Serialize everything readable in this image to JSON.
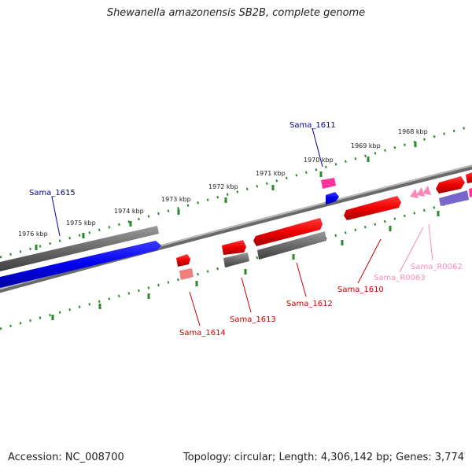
{
  "title": "Shewanella amazonensis SB2B, complete genome",
  "footer": {
    "accession": "Accession: NC_008700",
    "info": "Topology: circular; Length: 4,306,142 bp; Genes: 3,774"
  },
  "ticks": [
    "1976 kbp",
    "1975 kbp",
    "1974 kbp",
    "1973 kbp",
    "1972 kbp",
    "1971 kbp",
    "1970 kbp",
    "1969 kbp",
    "1968 kbp"
  ],
  "genes": {
    "sama_1615": "Sama_1615",
    "sama_1611": "Sama_1611",
    "sama_1614": "Sama_1614",
    "sama_1613": "Sama_1613",
    "sama_1612": "Sama_1612",
    "sama_1610": "Sama_1610",
    "sama_r0063": "Sama_R0063",
    "sama_r0062": "Sama_R0062"
  },
  "colors": {
    "cds": "#ff0000",
    "gene_bar": "#707070",
    "blue_gene": "#0000ff",
    "pink_gene": "#ff3399",
    "rna": "#ff88bb",
    "purple_gene": "#7766cc",
    "tick": "#2a8a2a",
    "backbone": "#808080"
  }
}
